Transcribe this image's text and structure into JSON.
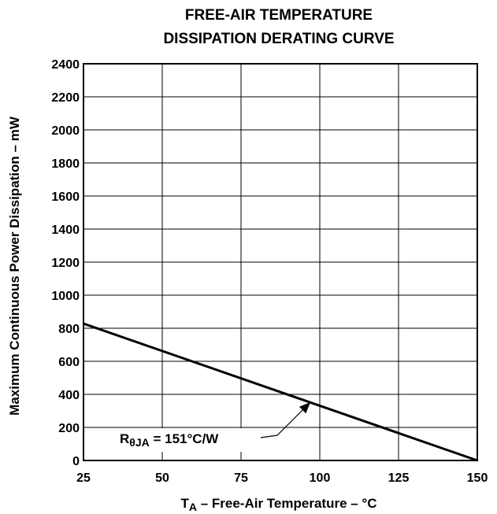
{
  "chart_data": {
    "type": "line",
    "title": {
      "line1": "FREE-AIR TEMPERATURE",
      "line2": "DISSIPATION DERATING CURVE"
    },
    "xlabel": {
      "main": "T",
      "subscript": "A",
      "rest": " – Free-Air Temperature – °C"
    },
    "ylabel": "Maximum Continuous Power Dissipation – mW",
    "xlim": [
      25,
      150
    ],
    "ylim": [
      0,
      2400
    ],
    "x_ticks": [
      25,
      50,
      75,
      100,
      125,
      150
    ],
    "y_ticks": [
      0,
      200,
      400,
      600,
      800,
      1000,
      1200,
      1400,
      1600,
      1800,
      2000,
      2200,
      2400
    ],
    "grid": true,
    "series": [
      {
        "x": [
          25,
          150
        ],
        "y": [
          828,
          0
        ]
      }
    ],
    "annotation": {
      "prefix": "R",
      "subscript": "θJA",
      "suffix": " = 151°C/W",
      "target": {
        "x": 97,
        "y": 352
      }
    }
  }
}
